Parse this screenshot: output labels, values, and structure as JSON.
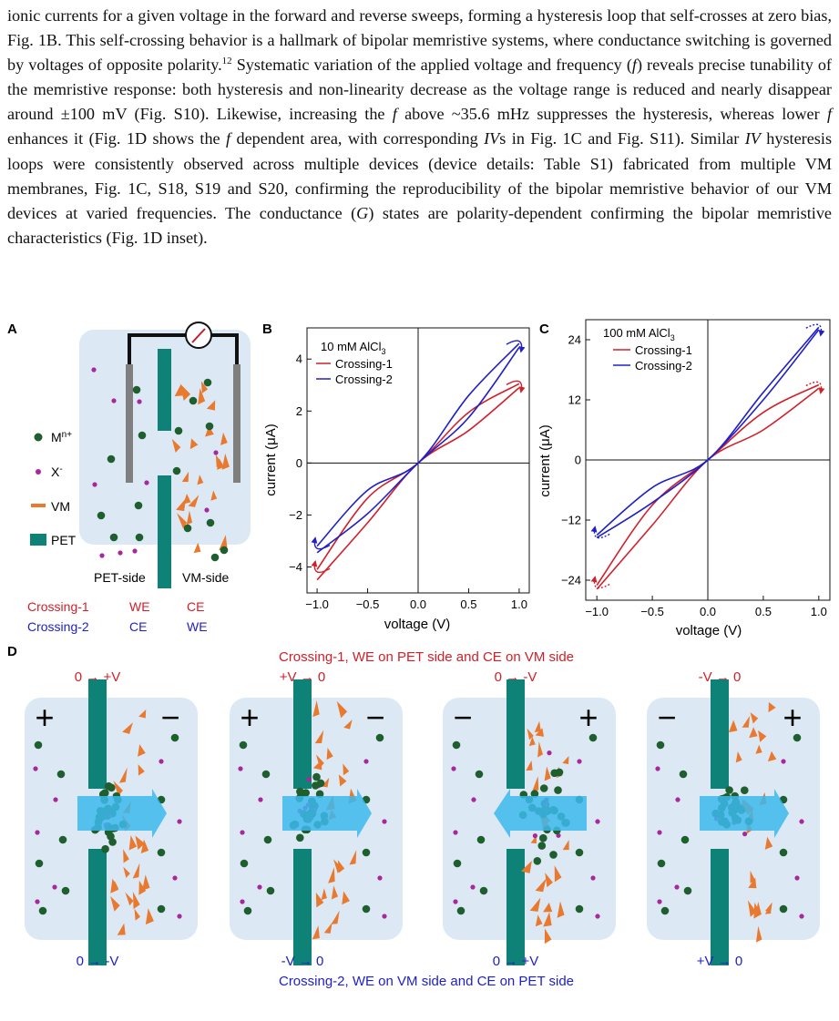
{
  "paragraph": {
    "s1": "ionic currents for a given voltage in the forward and reverse sweeps, forming a hysteresis loop that self-crosses at zero bias, Fig. 1B. This self-crossing behavior is a hallmark of bipolar memristive systems, where conductance switching is governed by voltages of opposite polarity.",
    "ref1": "12",
    "s2": " Systematic variation of the applied voltage and frequency (",
    "f1": "f",
    "s3": ") reveals precise tunability of the memristive response: both hysteresis and non-linearity decrease as the voltage range is reduced and nearly disappear around ±100 mV (Fig. S10). Likewise, increasing the ",
    "f2": "f",
    "s4": " above ~35.6 mHz suppresses the hysteresis, whereas lower ",
    "f3": "f",
    "s5": " enhances it (Fig. 1D shows the ",
    "f4": "f",
    "s6": " dependent area, with corresponding ",
    "iv1": "IV",
    "s7": "s in Fig. 1C and Fig. S11). Similar ",
    "iv2": "IV",
    "s8": " hysteresis loops were consistently observed across multiple devices (device details: Table S1) fabricated from multiple VM membranes, Fig. 1C, S18, S19 and S20, confirming the reproducibility of the bipolar memristive behavior of our VM devices at varied frequencies. The conductance (",
    "g": "G",
    "s9": ") states are polarity-dependent confirming the bipolar memristive characteristics (Fig. 1D inset)."
  },
  "panelA": {
    "label": "A",
    "legend": {
      "cation": "M",
      "cation_sup": "n+",
      "anion": "X",
      "anion_sup": "-",
      "vm": "VM",
      "pet": "PET"
    },
    "pet_side": "PET-side",
    "vm_side": "VM-side",
    "crossing1": {
      "name": "Crossing-1",
      "pet": "WE",
      "vm": "CE"
    },
    "crossing2": {
      "name": "Crossing-2",
      "pet": "CE",
      "vm": "WE"
    }
  },
  "colors": {
    "red": "#d0202a",
    "blue": "#2020c8",
    "teal": "#0f8278",
    "orange": "#e8792e",
    "cation": "#1f5e2e",
    "anion": "#a8289a",
    "cell": "#dce9f5",
    "arrow": "#3cb8ec"
  },
  "chart_data": [
    {
      "panel": "B",
      "type": "line",
      "annotation": "10 mM AlCl",
      "annotation_sub": "3",
      "xlabel": "voltage (V)",
      "ylabel": "current (μA)",
      "xlim": [
        -1.1,
        1.1
      ],
      "ylim": [
        -5,
        5.2
      ],
      "xticks": [
        -1.0,
        -0.5,
        0.0,
        0.5,
        1.0
      ],
      "xtick_labels": [
        "−1.0",
        "−0.5",
        "0.0",
        "0.5",
        "1.0"
      ],
      "yticks": [
        -4,
        -2,
        0,
        2,
        4
      ],
      "ytick_labels": [
        "−4",
        "−2",
        "0",
        "2",
        "4"
      ],
      "series": [
        {
          "name": "Crossing-1",
          "color": "#d0202a",
          "upper": [
            [
              -1.0,
              -4.1
            ],
            [
              -0.5,
              -1.35
            ],
            [
              0,
              0
            ],
            [
              0.5,
              1.95
            ],
            [
              1.0,
              3.05
            ]
          ],
          "lower": [
            [
              -1.0,
              -4.5
            ],
            [
              -0.5,
              -2.3
            ],
            [
              0,
              0
            ],
            [
              0.5,
              1.25
            ],
            [
              1.0,
              2.9
            ]
          ]
        },
        {
          "name": "Crossing-2",
          "color": "#2020c8",
          "upper": [
            [
              -1.0,
              -3.2
            ],
            [
              -0.5,
              -1.05
            ],
            [
              0,
              0
            ],
            [
              0.5,
              2.6
            ],
            [
              1.0,
              4.6
            ]
          ],
          "lower": [
            [
              -1.0,
              -3.45
            ],
            [
              -0.5,
              -1.95
            ],
            [
              0,
              0
            ],
            [
              0.5,
              1.75
            ],
            [
              1.0,
              4.45
            ]
          ]
        }
      ]
    },
    {
      "panel": "C",
      "type": "line",
      "annotation": "100 mM AlCl",
      "annotation_sub": "3",
      "xlabel": "voltage (V)",
      "ylabel": "current (μA)",
      "xlim": [
        -1.1,
        1.1
      ],
      "ylim": [
        -28,
        28
      ],
      "xticks": [
        -1.0,
        -0.5,
        0.0,
        0.5,
        1.0
      ],
      "xtick_labels": [
        "−1.0",
        "−0.5",
        "0.0",
        "0.5",
        "1.0"
      ],
      "yticks": [
        -24,
        -12,
        0,
        12,
        24
      ],
      "ytick_labels": [
        "−24",
        "−12",
        "0",
        "12",
        "24"
      ],
      "series": [
        {
          "name": "Crossing-1",
          "color": "#d0202a",
          "upper": [
            [
              -1.0,
              -25.0
            ],
            [
              -0.5,
              -9.0
            ],
            [
              0,
              0
            ],
            [
              0.5,
              9.5
            ],
            [
              1.0,
              15.0
            ]
          ],
          "lower": [
            [
              -1.0,
              -25.8
            ],
            [
              -0.5,
              -13.0
            ],
            [
              0,
              0
            ],
            [
              0.5,
              6.0
            ],
            [
              1.0,
              14.3
            ]
          ]
        },
        {
          "name": "Crossing-2",
          "color": "#2020c8",
          "upper": [
            [
              -1.0,
              -15.0
            ],
            [
              -0.5,
              -5.5
            ],
            [
              0,
              0
            ],
            [
              0.5,
              13.5
            ],
            [
              1.0,
              26.5
            ]
          ],
          "lower": [
            [
              -1.0,
              -15.5
            ],
            [
              -0.5,
              -8.5
            ],
            [
              0,
              0
            ],
            [
              0.5,
              12.0
            ],
            [
              1.0,
              26.0
            ]
          ]
        }
      ]
    }
  ],
  "panelD": {
    "label": "D",
    "top_caption": "Crossing-1, WE on PET side and CE on VM side",
    "bottom_caption": "Crossing-2, WE on VM side and CE on PET side",
    "cells": [
      {
        "top": "0 → +V",
        "bottom": "0 → -V",
        "left_sign": "+",
        "right_sign": "−",
        "arrow": "right",
        "accum": "pet"
      },
      {
        "top": "+V → 0",
        "bottom": "-V → 0",
        "left_sign": "+",
        "right_sign": "−",
        "arrow": "right",
        "accum": "pet"
      },
      {
        "top": "0 → -V",
        "bottom": "0 → +V",
        "left_sign": "−",
        "right_sign": "+",
        "arrow": "left",
        "accum": "vm"
      },
      {
        "top": "-V → 0",
        "bottom": "+V → 0",
        "left_sign": "−",
        "right_sign": "+",
        "arrow": "right",
        "accum": "both"
      }
    ]
  }
}
